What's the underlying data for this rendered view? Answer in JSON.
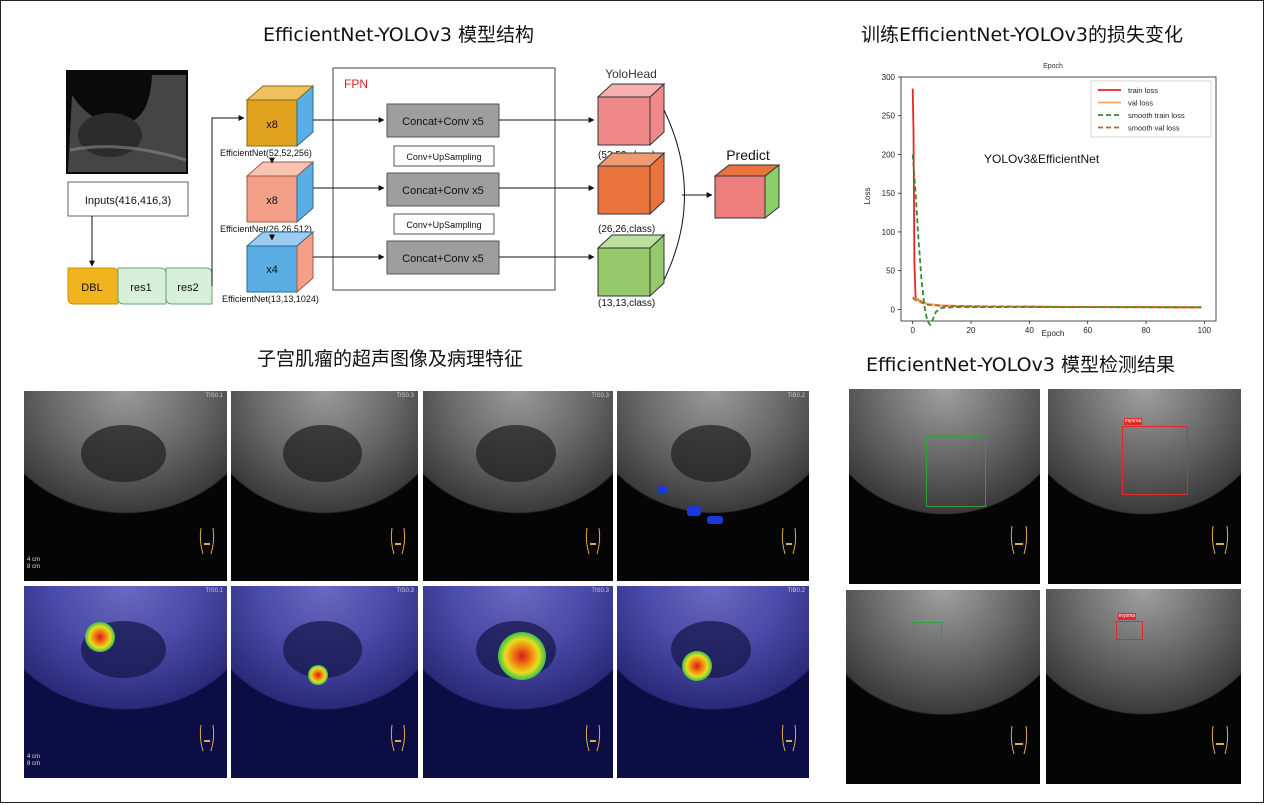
{
  "titles": {
    "architecture": "EfficientNet-YOLOv3 模型结构",
    "training": "训练EfficientNet-YOLOv3的损失变化",
    "ultrasound": "子宫肌瘤的超声图像及病理特征",
    "detection": "EfficientNet-YOLOv3 模型检测结果"
  },
  "diagram": {
    "inputs": "Inputs(416,416,3)",
    "dbl": "DBL",
    "res1": "res1",
    "res2": "res2",
    "fpn": "FPN",
    "yolohead": "YoloHead",
    "predict": "Predict",
    "branches": [
      {
        "mult": "x8",
        "label": "EfficientNet(52,52,256)",
        "concat": "Concat+Conv x5",
        "out": "(52,52,class)"
      },
      {
        "mult": "x8",
        "label": "EfficientNet(26,26,512)",
        "concat": "Concat+Conv x5",
        "out": "(26,26,class)"
      },
      {
        "mult": "x4",
        "label": "EfficientNet(13,13,1024)",
        "concat": "Concat+Conv x5",
        "out": "(13,13,class)"
      }
    ],
    "upsampling": [
      "Conv+UpSampling",
      "Conv+UpSampling"
    ],
    "colors": {
      "cube1": "#e0a21f",
      "cube2": "#f4a088",
      "cube3": "#5aaee4",
      "head1": "#f08a8a",
      "head2": "#e8733d",
      "head3": "#95c96b",
      "predict": "#ee7d7d",
      "dbl": "#f2b41e",
      "res": "#d8efd9",
      "concat": "#9e9e9e",
      "fpn": "#e02020"
    }
  },
  "chart_data": {
    "type": "line",
    "title": "Epoch",
    "xlabel": "Epoch",
    "ylabel": "Loss",
    "xlim": [
      -4,
      104
    ],
    "ylim": [
      -15,
      300
    ],
    "xticks": [
      0,
      20,
      40,
      60,
      80,
      100
    ],
    "yticks": [
      0,
      50,
      100,
      150,
      200,
      250,
      300
    ],
    "annotation": "YOLOv3&EfficientNet",
    "legend_position": "top-right",
    "grid": false,
    "series": [
      {
        "name": "train loss",
        "color": "#ee2222",
        "dash": "",
        "x": [
          0,
          0.3,
          0.6,
          1,
          2,
          5,
          10,
          20,
          40,
          60,
          80,
          99
        ],
        "y": [
          285,
          230,
          60,
          15,
          12,
          7,
          5,
          4,
          3.5,
          3,
          2.8,
          2.5
        ]
      },
      {
        "name": "val loss",
        "color": "#f4a460",
        "dash": "",
        "x": [
          0,
          1,
          2,
          5,
          10,
          20,
          40,
          60,
          80,
          99
        ],
        "y": [
          16,
          14,
          11,
          7,
          5,
          4,
          3.6,
          3.2,
          3,
          2.8
        ]
      },
      {
        "name": "smooth train loss",
        "color": "#2e8b2e",
        "dash": "5,3",
        "x": [
          0,
          1,
          2,
          3,
          4,
          5,
          6,
          7,
          8,
          10,
          15,
          30,
          60,
          99
        ],
        "y": [
          200,
          150,
          90,
          40,
          5,
          -15,
          -20,
          -12,
          -3,
          2,
          3,
          3,
          3,
          2.5
        ]
      },
      {
        "name": "smooth val loss",
        "color": "#b5651d",
        "dash": "5,3",
        "x": [
          0,
          1,
          2,
          5,
          10,
          20,
          40,
          70,
          99
        ],
        "y": [
          15,
          12,
          10,
          6,
          4.5,
          4,
          3.5,
          3,
          2.8
        ]
      }
    ]
  },
  "ultrasound": {
    "top_tags": [
      "TIS0.1",
      "TIS0.3",
      "TIS0.3",
      "TIB0.2"
    ],
    "bottom_tags": [
      "TIS0.1",
      "TIS0.3",
      "TIS0.3",
      "TIB0.2"
    ],
    "depth_text": [
      "4 cm",
      "8 cm"
    ],
    "probe_icon": "body-marker-icon"
  },
  "detection": {
    "labels": [
      "",
      "myoma",
      "",
      "myoma"
    ],
    "box_colors": [
      "#2e9e3e",
      "#e02a2a",
      "#2e9e3e",
      "#e02a2a"
    ]
  }
}
